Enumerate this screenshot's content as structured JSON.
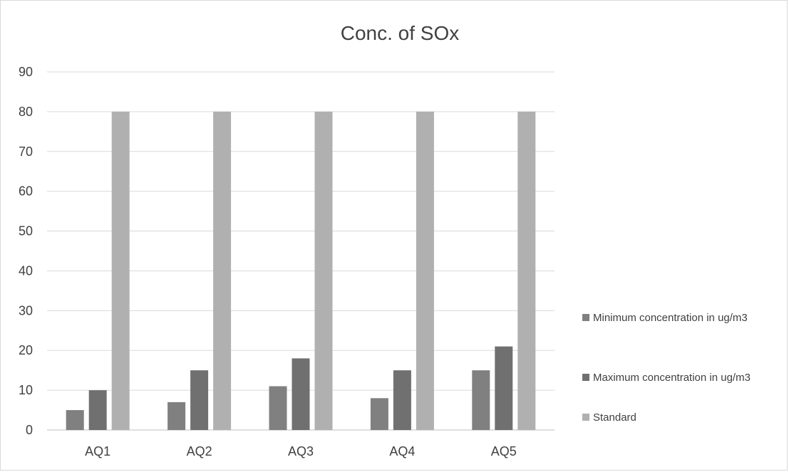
{
  "chart_data": {
    "type": "bar",
    "title": "Conc. of SOx",
    "xlabel": "",
    "ylabel": "",
    "categories": [
      "AQ1",
      "AQ2",
      "AQ3",
      "AQ4",
      "AQ5"
    ],
    "series": [
      {
        "name": "Minimum concentration in ug/m3",
        "values": [
          5,
          7,
          11,
          8,
          15
        ],
        "color": "#808080"
      },
      {
        "name": "Maximum concentration in ug/m3",
        "values": [
          10,
          15,
          18,
          15,
          21
        ],
        "color": "#707070"
      },
      {
        "name": "Standard",
        "values": [
          80,
          80,
          80,
          80,
          80
        ],
        "color": "#b0b0b0"
      }
    ],
    "ylim": [
      0,
      90
    ],
    "yticks": [
      "0",
      "10",
      "20",
      "30",
      "40",
      "50",
      "60",
      "70",
      "80",
      "90"
    ],
    "grid": true,
    "legend_position": "right"
  }
}
